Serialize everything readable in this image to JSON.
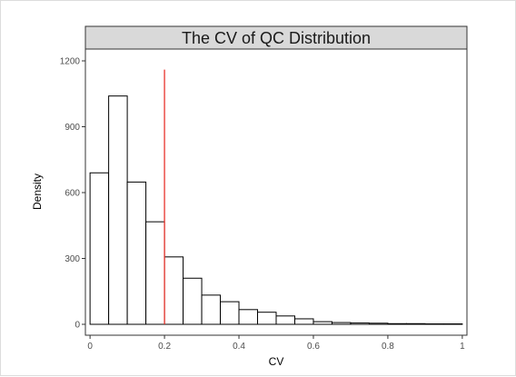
{
  "chart_data": {
    "type": "bar",
    "title": "The CV of QC Distribution",
    "xlabel": "CV",
    "ylabel": "Density",
    "xlim": [
      -0.0125,
      1.0125
    ],
    "ylim": [
      0,
      1200
    ],
    "x_ticks": [
      0,
      0.2,
      0.4,
      0.6,
      0.8,
      1
    ],
    "x_tick_labels": [
      "0",
      "0.2",
      "0.4",
      "0.6",
      "0.8",
      "1"
    ],
    "y_ticks": [
      0,
      300,
      600,
      900,
      1200
    ],
    "y_tick_labels": [
      "0",
      "300",
      "600",
      "900",
      "1200"
    ],
    "bin_width": 0.05,
    "bins": [
      {
        "start": 0.0,
        "end": 0.05,
        "value": 690
      },
      {
        "start": 0.05,
        "end": 0.1,
        "value": 1040
      },
      {
        "start": 0.1,
        "end": 0.15,
        "value": 648
      },
      {
        "start": 0.15,
        "end": 0.2,
        "value": 467
      },
      {
        "start": 0.2,
        "end": 0.25,
        "value": 307
      },
      {
        "start": 0.25,
        "end": 0.3,
        "value": 210
      },
      {
        "start": 0.3,
        "end": 0.35,
        "value": 133
      },
      {
        "start": 0.35,
        "end": 0.4,
        "value": 103
      },
      {
        "start": 0.4,
        "end": 0.45,
        "value": 67
      },
      {
        "start": 0.45,
        "end": 0.5,
        "value": 55
      },
      {
        "start": 0.5,
        "end": 0.55,
        "value": 38
      },
      {
        "start": 0.55,
        "end": 0.6,
        "value": 25
      },
      {
        "start": 0.6,
        "end": 0.65,
        "value": 12
      },
      {
        "start": 0.65,
        "end": 0.7,
        "value": 8
      },
      {
        "start": 0.7,
        "end": 0.75,
        "value": 6
      },
      {
        "start": 0.75,
        "end": 0.8,
        "value": 5
      },
      {
        "start": 0.8,
        "end": 0.85,
        "value": 3
      },
      {
        "start": 0.85,
        "end": 0.9,
        "value": 3
      },
      {
        "start": 0.9,
        "end": 0.95,
        "value": 2
      },
      {
        "start": 0.95,
        "end": 1.0,
        "value": 2
      }
    ],
    "reference_line": {
      "x": 0.2,
      "y_top": 1160,
      "color": "#e8332b"
    },
    "grid": false,
    "legend": "none",
    "colors": {
      "bar_fill": "#ffffff",
      "bar_stroke": "#000000",
      "strip_fill": "#d9d9d9"
    }
  }
}
